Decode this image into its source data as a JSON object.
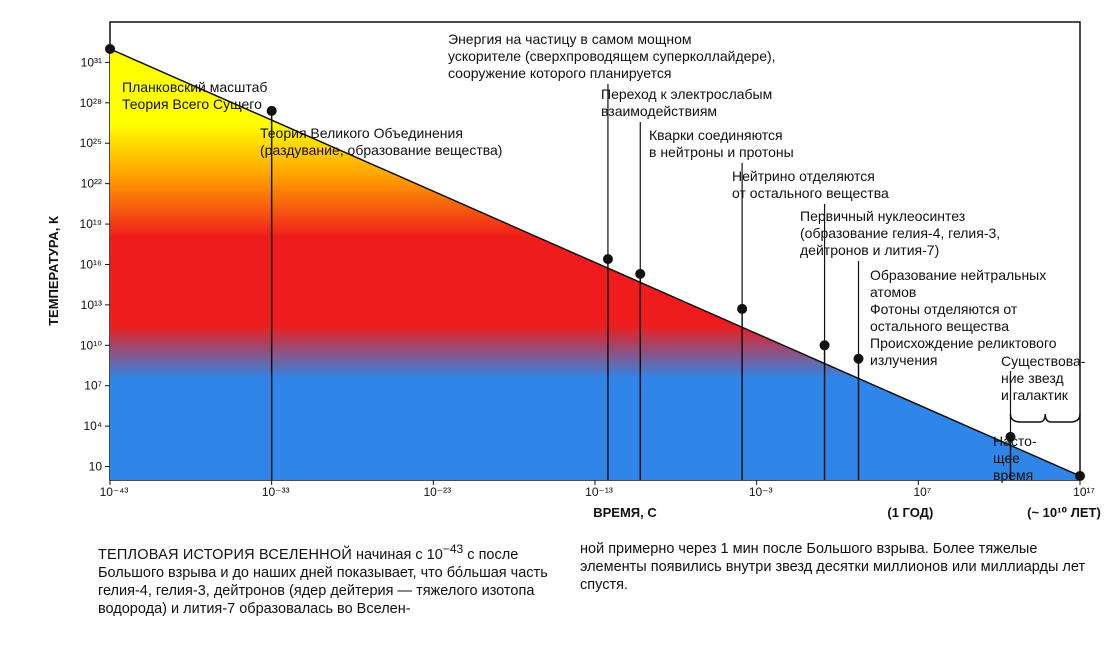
{
  "chart_data": {
    "type": "line",
    "xlabel": "ВРЕМЯ, С",
    "ylabel": "ТЕМПЕРАТУРА, К",
    "x_log": true,
    "y_log": true,
    "xlim_exp": [
      -43,
      17
    ],
    "ylim_exp": [
      0,
      34
    ],
    "x_ticks": [
      {
        "exp": -43,
        "label": "10⁻⁴³"
      },
      {
        "exp": -33,
        "label": "10⁻³³"
      },
      {
        "exp": -23,
        "label": "10⁻²³"
      },
      {
        "exp": -13,
        "label": "10⁻¹³"
      },
      {
        "exp": -3,
        "label": "10⁻³"
      },
      {
        "exp": 7,
        "label": "10⁷"
      },
      {
        "exp": 17,
        "label": "10¹⁷"
      }
    ],
    "x_extra_labels": [
      {
        "exp": 7,
        "label": "(1 ГОД)"
      },
      {
        "exp": 17,
        "label": "(~ 10¹⁰ ЛЕТ)"
      }
    ],
    "y_ticks": [
      {
        "exp": 1,
        "label": "10"
      },
      {
        "exp": 4,
        "label": "10⁴"
      },
      {
        "exp": 7,
        "label": "10⁷"
      },
      {
        "exp": 10,
        "label": "10¹⁰"
      },
      {
        "exp": 13,
        "label": "10¹³"
      },
      {
        "exp": 16,
        "label": "10¹⁶"
      },
      {
        "exp": 19,
        "label": "10¹⁹"
      },
      {
        "exp": 22,
        "label": "10²²"
      },
      {
        "exp": 25,
        "label": "10²⁵"
      },
      {
        "exp": 28,
        "label": "10²⁸"
      },
      {
        "exp": 31,
        "label": "10³¹"
      }
    ],
    "curve": [
      {
        "x_exp": -43,
        "y_exp": 32
      },
      {
        "x_exp": 17,
        "y_exp": 0.3
      }
    ],
    "events": [
      {
        "x_exp": -43,
        "y_exp": 32,
        "lines": [
          "Планковский масштаб",
          "Теория Всего Сущего"
        ]
      },
      {
        "x_exp": -33,
        "y_exp": 27.4,
        "lines": [
          "Теория Великого Объединения",
          "(раздувание, образование вещества)"
        ]
      },
      {
        "x_exp": -12.2,
        "y_exp": 16.4,
        "lines": [
          "Энергия на частицу в самом мощном",
          "ускорителе (сверхпроводящем суперколлайдере),",
          "сооружение которого планируется"
        ]
      },
      {
        "x_exp": -10.2,
        "y_exp": 15.3,
        "lines": [
          "Переход к электрослабым",
          "взаимодействиям"
        ]
      },
      {
        "x_exp": -3.9,
        "y_exp": 12.7,
        "lines": [
          "Кварки соединяются",
          "в нейтроны и протоны"
        ]
      },
      {
        "x_exp": 1.2,
        "y_exp": 10.0,
        "lines": [
          "Нейтрино отделяются",
          "от остального вещества"
        ]
      },
      {
        "x_exp": 3.3,
        "y_exp": 9.0,
        "lines": [
          "Первичный нуклеосинтез",
          "(образование гелия-4, гелия-3,",
          "дейтронов и лития-7)"
        ]
      },
      {
        "x_exp": 12.7,
        "y_exp": 3.2,
        "lines": [
          "Образование нейтральных",
          "атомов",
          "Фотоны отделяются от",
          "остального вещества",
          "Происхождение реликтового",
          "излучения"
        ]
      },
      {
        "x_exp": 17,
        "y_exp": 0.3,
        "lines": [
          "Насто-",
          "щее",
          "время"
        ]
      }
    ],
    "bracket_label": [
      "Существова-",
      "ние  звезд",
      "и галактик"
    ]
  },
  "caption": {
    "left_head": "ТЕПЛОВАЯ ИСТОРИЯ ВСЕЛЕННОЙ",
    "left_body": " начиная с 10",
    "left_exp": "−43",
    "left_rest": " с после Большого взрыва и до наших дней показывает, что бóльшая часть гелия-4, гелия-3, дейтронов (ядер дейтерия — тяжелого изотопа водорода) и лития-7 образовалась во Вселен-",
    "right": "ной примерно через 1 мин после Большого взрыва. Более тяжелые элементы появились внутри звезд десятки миллионов или миллиарды лет спустя."
  },
  "colors": {
    "top": "#ffff00",
    "orange": "#ffa000",
    "red": "#ee1c1c",
    "blue": "#2f86e8"
  }
}
